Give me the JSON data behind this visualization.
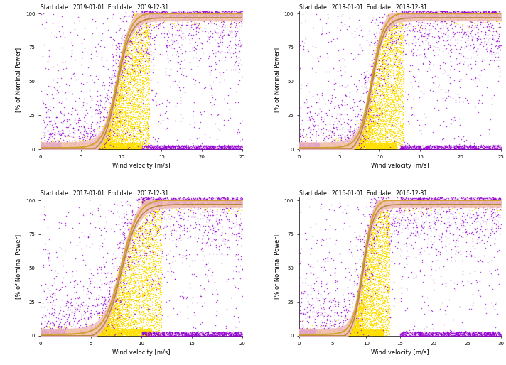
{
  "subplots": [
    {
      "title": "Start date:  2019-01-01  End date:  2019-12-31",
      "xmax": 25,
      "curve_shift": 9.5,
      "curve_scale": 1.2
    },
    {
      "title": "Start date:  2018-01-01  End date:  2018-12-31",
      "xmax": 25,
      "curve_shift": 9.0,
      "curve_scale": 1.3
    },
    {
      "title": "Start date:  2017-01-01  End date:  2017-12-31",
      "xmax": 20,
      "curve_shift": 8.0,
      "curve_scale": 1.2
    },
    {
      "title": "Start date:  2016-01-01  End date:  2016-12-31",
      "xmax": 30,
      "curve_shift": 9.5,
      "curve_scale": 1.3
    }
  ],
  "xlabel": "Wind velocity [m/s]",
  "ylabel": "[% of Nominal Power]",
  "scatter_color_yellow": "#FFE000",
  "scatter_color_purple": "#9400D3",
  "curve_color_outer": "#D4A030",
  "curve_color_inner": "#B8883A",
  "band_color": "#F0C0C8",
  "bg_color": "#FFFFFF",
  "title_fontsize": 5.5,
  "axis_label_fontsize": 6,
  "tick_fontsize": 5,
  "n_yellow": 12000,
  "n_purple": 5000
}
